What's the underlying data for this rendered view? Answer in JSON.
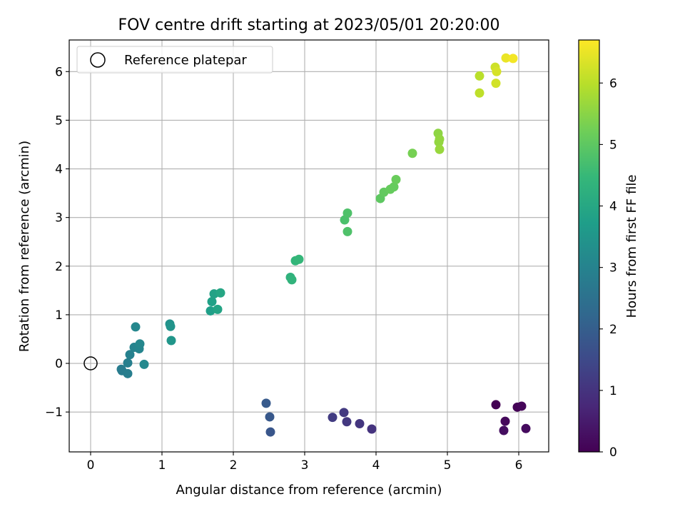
{
  "chart_data": {
    "type": "scatter",
    "title": "FOV centre drift starting at 2023/05/01 20:20:00",
    "xlabel": "Angular distance from reference (arcmin)",
    "ylabel": "Rotation from reference (arcmin)",
    "xlim": [
      -0.3,
      6.42
    ],
    "ylim": [
      -1.82,
      6.65
    ],
    "xticks": [
      0,
      1,
      2,
      3,
      4,
      5,
      6
    ],
    "xtick_labels": [
      "0",
      "1",
      "2",
      "3",
      "4",
      "5",
      "6"
    ],
    "yticks": [
      -1,
      0,
      1,
      2,
      3,
      4,
      5,
      6
    ],
    "ytick_labels": [
      "−1",
      "0",
      "1",
      "2",
      "3",
      "4",
      "5",
      "6"
    ],
    "grid": true,
    "legend": {
      "placement": "top-left",
      "entries": [
        {
          "label": "Reference platepar",
          "marker": "open-circle",
          "x": 0,
          "y": 0
        }
      ]
    },
    "colorbar": {
      "label": "Hours from first FF file",
      "range": [
        0,
        6.7
      ],
      "ticks": [
        0,
        1,
        2,
        3,
        4,
        5,
        6
      ],
      "tick_labels": [
        "0",
        "1",
        "2",
        "3",
        "4",
        "5",
        "6"
      ],
      "colormap": "viridis",
      "stops": [
        "#440154",
        "#482878",
        "#3e4989",
        "#31688e",
        "#26828e",
        "#1f9e89",
        "#35b779",
        "#6ece58",
        "#b5de2b",
        "#fde725"
      ]
    },
    "points": [
      {
        "x": 5.68,
        "y": -0.85,
        "c": 0.0
      },
      {
        "x": 5.98,
        "y": -0.9,
        "c": 0.05
      },
      {
        "x": 6.04,
        "y": -0.88,
        "c": 0.1
      },
      {
        "x": 5.81,
        "y": -1.19,
        "c": 0.15
      },
      {
        "x": 6.1,
        "y": -1.34,
        "c": 0.2
      },
      {
        "x": 5.79,
        "y": -1.38,
        "c": 0.25
      },
      {
        "x": 3.94,
        "y": -1.35,
        "c": 1.0
      },
      {
        "x": 3.77,
        "y": -1.24,
        "c": 1.05
      },
      {
        "x": 3.59,
        "y": -1.2,
        "c": 1.1
      },
      {
        "x": 3.55,
        "y": -1.01,
        "c": 1.15
      },
      {
        "x": 3.39,
        "y": -1.11,
        "c": 1.2
      },
      {
        "x": 2.52,
        "y": -1.41,
        "c": 1.8
      },
      {
        "x": 2.51,
        "y": -1.1,
        "c": 1.85
      },
      {
        "x": 2.46,
        "y": -0.82,
        "c": 1.9
      },
      {
        "x": 0.43,
        "y": -0.12,
        "c": 2.8
      },
      {
        "x": 0.44,
        "y": -0.15,
        "c": 2.8
      },
      {
        "x": 0.52,
        "y": -0.21,
        "c": 2.85
      },
      {
        "x": 0.52,
        "y": 0.01,
        "c": 2.9
      },
      {
        "x": 0.55,
        "y": 0.18,
        "c": 2.95
      },
      {
        "x": 0.61,
        "y": 0.33,
        "c": 3.0
      },
      {
        "x": 0.68,
        "y": 0.3,
        "c": 3.05
      },
      {
        "x": 0.69,
        "y": 0.4,
        "c": 3.1
      },
      {
        "x": 0.63,
        "y": 0.75,
        "c": 3.1
      },
      {
        "x": 0.75,
        "y": -0.02,
        "c": 3.15
      },
      {
        "x": 1.11,
        "y": 0.81,
        "c": 3.4
      },
      {
        "x": 1.12,
        "y": 0.76,
        "c": 3.45
      },
      {
        "x": 1.13,
        "y": 0.47,
        "c": 3.5
      },
      {
        "x": 1.68,
        "y": 1.08,
        "c": 3.75
      },
      {
        "x": 1.7,
        "y": 1.27,
        "c": 3.8
      },
      {
        "x": 1.73,
        "y": 1.43,
        "c": 3.85
      },
      {
        "x": 1.78,
        "y": 1.11,
        "c": 3.9
      },
      {
        "x": 1.82,
        "y": 1.45,
        "c": 3.95
      },
      {
        "x": 2.8,
        "y": 1.77,
        "c": 4.3
      },
      {
        "x": 2.82,
        "y": 1.72,
        "c": 4.35
      },
      {
        "x": 2.87,
        "y": 2.11,
        "c": 4.4
      },
      {
        "x": 2.92,
        "y": 2.14,
        "c": 4.45
      },
      {
        "x": 3.56,
        "y": 2.95,
        "c": 4.75
      },
      {
        "x": 3.6,
        "y": 3.09,
        "c": 4.8
      },
      {
        "x": 3.6,
        "y": 2.71,
        "c": 4.8
      },
      {
        "x": 4.06,
        "y": 3.39,
        "c": 5.0
      },
      {
        "x": 4.11,
        "y": 3.52,
        "c": 5.05
      },
      {
        "x": 4.2,
        "y": 3.58,
        "c": 5.1
      },
      {
        "x": 4.25,
        "y": 3.63,
        "c": 5.1
      },
      {
        "x": 4.28,
        "y": 3.78,
        "c": 5.15
      },
      {
        "x": 4.51,
        "y": 4.32,
        "c": 5.3
      },
      {
        "x": 4.87,
        "y": 4.73,
        "c": 5.55
      },
      {
        "x": 4.88,
        "y": 4.55,
        "c": 5.6
      },
      {
        "x": 4.89,
        "y": 4.4,
        "c": 5.65
      },
      {
        "x": 4.89,
        "y": 4.61,
        "c": 5.6
      },
      {
        "x": 5.45,
        "y": 5.91,
        "c": 6.0
      },
      {
        "x": 5.45,
        "y": 5.56,
        "c": 6.05
      },
      {
        "x": 5.67,
        "y": 6.09,
        "c": 6.2
      },
      {
        "x": 5.68,
        "y": 5.76,
        "c": 6.25
      },
      {
        "x": 5.69,
        "y": 6.0,
        "c": 6.3
      },
      {
        "x": 5.82,
        "y": 6.28,
        "c": 6.5
      },
      {
        "x": 5.92,
        "y": 6.27,
        "c": 6.6
      }
    ]
  }
}
